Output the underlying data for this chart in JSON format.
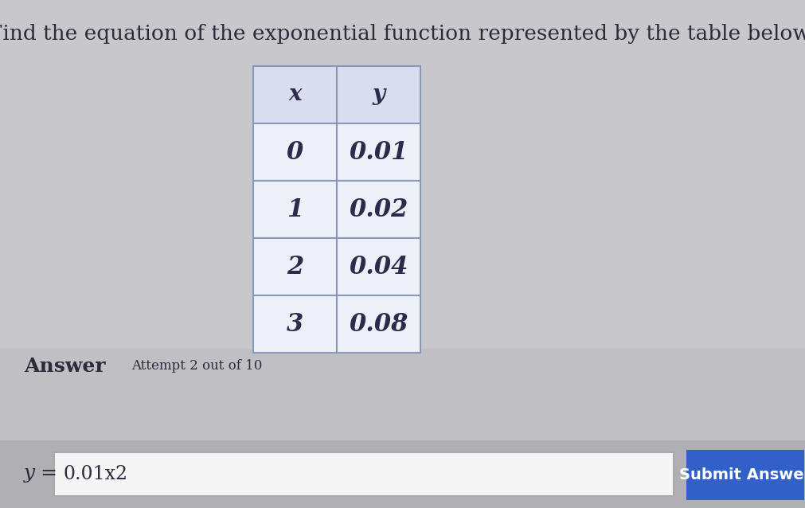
{
  "title": "Find the equation of the exponential function represented by the table below:",
  "title_fontsize": 19,
  "title_color": "#2b2b3b",
  "background_color": "#c8c8cc",
  "table_x_values": [
    "x",
    "0",
    "1",
    "2",
    "3"
  ],
  "table_y_values": [
    "y",
    "0.01",
    "0.02",
    "0.04",
    "0.08"
  ],
  "answer_label": "Answer",
  "attempt_text": "Attempt 2 out of 10",
  "equation_prefix": "y =",
  "equation_value": "0.01x2",
  "submit_button_text": "Submit Answer",
  "submit_button_color": "#3060c8",
  "submit_button_text_color": "#ffffff",
  "table_border_color": "#8899bb",
  "table_bg_color": "#eef0f8",
  "table_header_bg": "#d8ddf0",
  "table_text_color": "#2b2b4b",
  "input_box_color": "#f5f5f5",
  "input_border_color": "#aaaaaa",
  "answer_section_bg": "#c0c0c4",
  "bottom_bar_color": "#b8b8bc"
}
